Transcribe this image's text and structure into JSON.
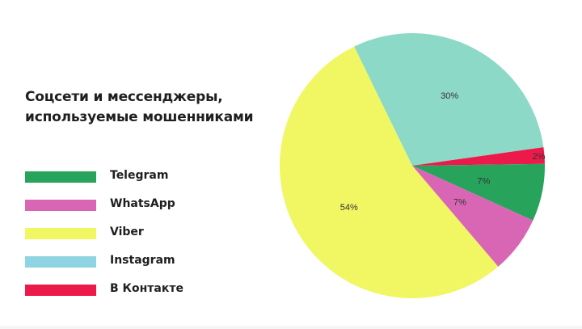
{
  "title": "Соцсети и мессенджеры, используемые мошенниками",
  "legend": [
    {
      "label": "Telegram",
      "color": "#27a35c"
    },
    {
      "label": "WhatsApp",
      "color": "#d966b5"
    },
    {
      "label": "Viber",
      "color": "#f0f763"
    },
    {
      "label": "Instagram",
      "color": "#8fd4e2"
    },
    {
      "label": "В Контакте",
      "color": "#ec1a4b"
    }
  ],
  "chart_data": {
    "type": "pie",
    "title": "Соцсети и мессенджеры, используемые мошенниками",
    "categories": [
      "Instagram",
      "В Контакте",
      "Telegram",
      "WhatsApp",
      "Viber"
    ],
    "values": [
      30,
      2,
      7,
      7,
      54
    ],
    "labels": [
      "30%",
      "2%",
      "7%",
      "7%",
      "54%"
    ],
    "colors": [
      "#8dd9c7",
      "#ec1a4b",
      "#27a35c",
      "#d966b5",
      "#f0f763"
    ],
    "start_angle_deg": -26,
    "direction": "clockwise",
    "legend_position": "left"
  }
}
